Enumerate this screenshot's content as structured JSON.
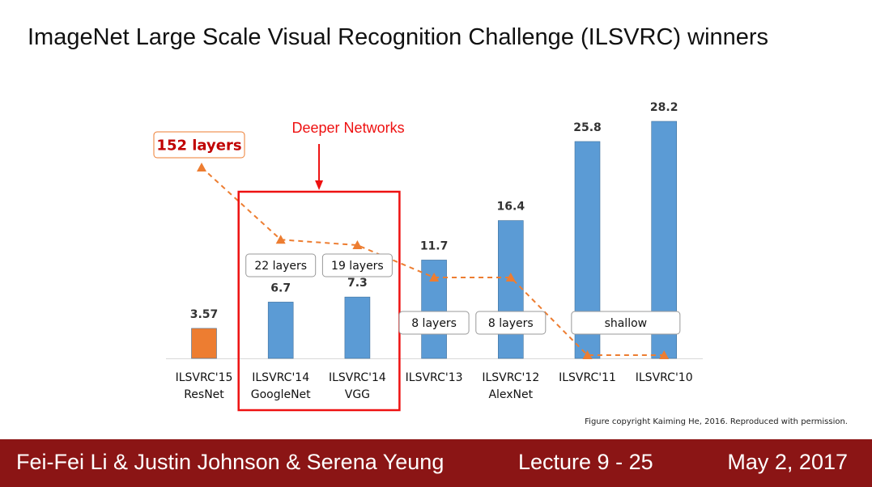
{
  "slide": {
    "title": "ImageNet Large Scale Visual Recognition Challenge (ILSVRC) winners",
    "copyright": "Figure copyright Kaiming He, 2016. Reproduced with permission."
  },
  "footer": {
    "authors": "Fei-Fei Li & Justin Johnson & Serena Yeung",
    "lecture": "Lecture 9 - 25",
    "date": "May 2, 2017"
  },
  "chart_data": {
    "type": "bar",
    "title": "",
    "xlabel": "",
    "ylabel": "",
    "ylim": [
      0,
      30
    ],
    "grid": false,
    "categories": [
      [
        "ILSVRC'15",
        "ResNet"
      ],
      [
        "ILSVRC'14",
        "GoogleNet"
      ],
      [
        "ILSVRC'14",
        "VGG"
      ],
      [
        "ILSVRC'13"
      ],
      [
        "ILSVRC'12",
        "AlexNet"
      ],
      [
        "ILSVRC'11"
      ],
      [
        "ILSVRC'10"
      ]
    ],
    "values": [
      3.57,
      6.7,
      7.3,
      11.7,
      16.4,
      25.8,
      28.2
    ],
    "value_labels": [
      "3.57",
      "6.7",
      "7.3",
      "11.7",
      "16.4",
      "25.8",
      "28.2"
    ],
    "bar_colors": [
      "#ed7d31",
      "#5b9bd5",
      "#5b9bd5",
      "#5b9bd5",
      "#5b9bd5",
      "#5b9bd5",
      "#5b9bd5"
    ],
    "layer_trend": {
      "color": "#ed7d31",
      "values": [
        152,
        22,
        19,
        8,
        8,
        1,
        1
      ]
    },
    "layer_labels": [
      {
        "text": "152 layers",
        "category": 0
      },
      {
        "text": "22 layers",
        "category": 1
      },
      {
        "text": "19 layers",
        "category": 2
      },
      {
        "text": "8 layers",
        "category": 3
      },
      {
        "text": "8 layers",
        "category": 4
      },
      {
        "text": "shallow",
        "category": [
          5,
          6
        ]
      }
    ],
    "highlight": {
      "label": "Deeper Networks",
      "categories": [
        1,
        2
      ],
      "color": "#ee1111"
    }
  }
}
